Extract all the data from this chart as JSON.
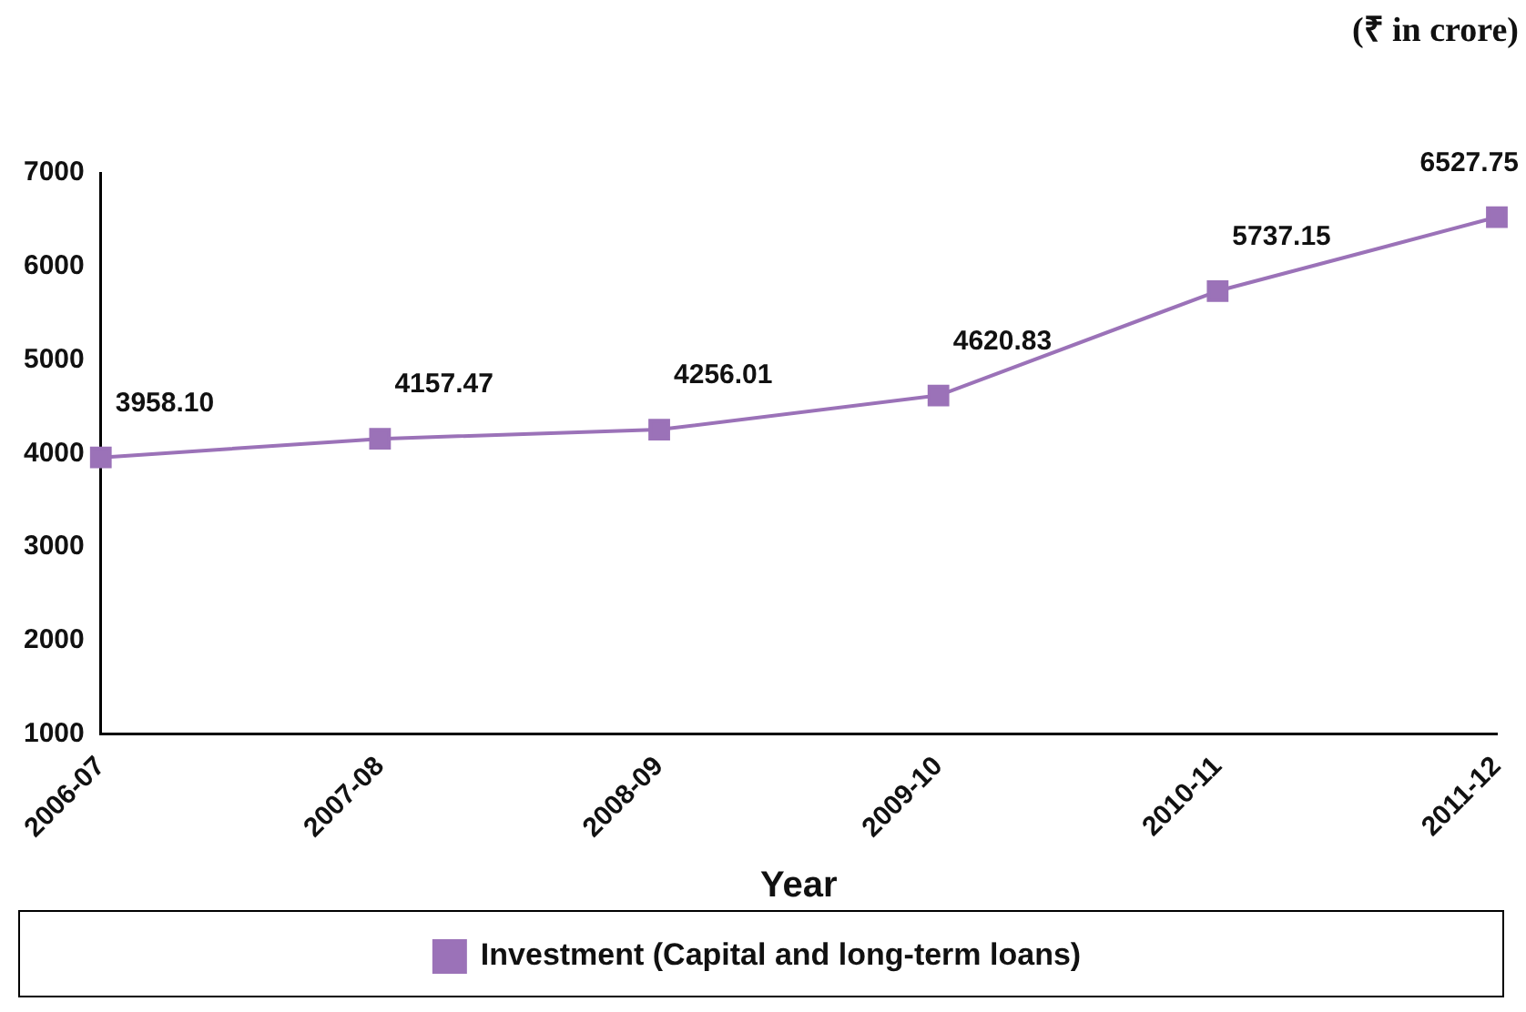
{
  "chart_data": {
    "type": "line",
    "xlabel": "Year",
    "annotations": [
      "(₹ in crore)"
    ],
    "categories": [
      "2006-07",
      "2007-08",
      "2008-09",
      "2009-10",
      "2010-11",
      "2011-12"
    ],
    "series": [
      {
        "name": "Investment (Capital and long-term loans)",
        "color": "#9b72b8",
        "values": [
          3958.1,
          4157.47,
          4256.01,
          4620.83,
          5737.15,
          6527.75
        ],
        "value_labels": [
          "3958.10",
          "4157.47",
          "4256.01",
          "4620.83",
          "5737.15",
          "6527.75"
        ]
      }
    ],
    "ylim": [
      1000,
      7000
    ],
    "yticks": [
      1000,
      2000,
      3000,
      4000,
      5000,
      6000,
      7000
    ],
    "grid": false,
    "legend": "bottom",
    "marker": "square",
    "line_style": "solid"
  }
}
